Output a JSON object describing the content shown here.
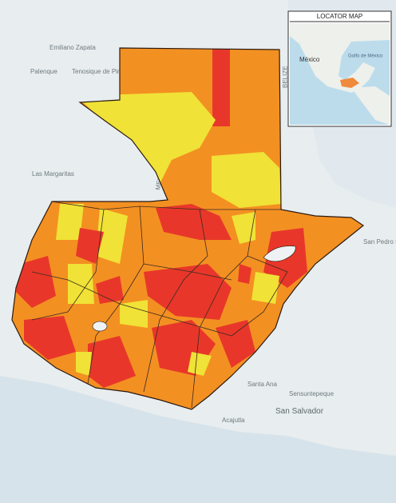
{
  "locator": {
    "title": "LOCATOR MAP",
    "labels": [
      "México",
      "Golfo de México"
    ]
  },
  "basemap_labels": [
    "Emiliano Zapata",
    "Palenque",
    "Tenosique de Pino Suárez",
    "Las Margaritas",
    "MEXICO",
    "BELIZE",
    "San Pedro Sula",
    "Santa Ana",
    "Sensuntepeque",
    "San Salvador",
    "Acajutla"
  ]
}
